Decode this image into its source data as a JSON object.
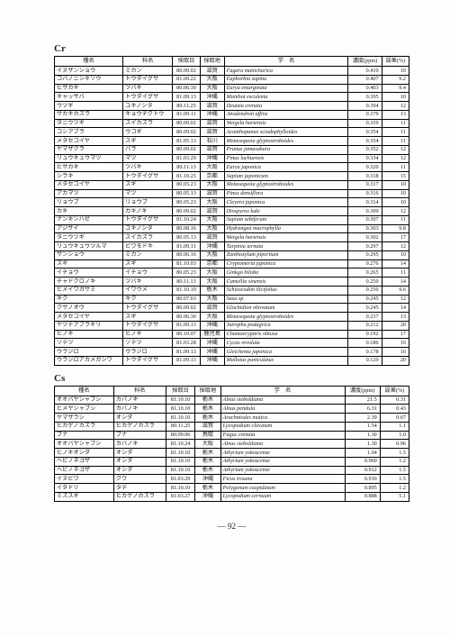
{
  "page_number": "92",
  "font_main": "MS Mincho",
  "colors": {
    "border": "#000000",
    "text": "#222222",
    "bg": "#fdfdfb"
  },
  "font_sizes": {
    "title": 11,
    "table": 6.2,
    "page_no": 9
  },
  "columns": [
    "種名",
    "科名",
    "採取日",
    "採取地",
    "学　名",
    "濃度(ppm)",
    "誤差(%)"
  ],
  "col_widths_pct": [
    14,
    13,
    10,
    7,
    35,
    9,
    7
  ],
  "tables": [
    {
      "title": "Cr",
      "rows": [
        [
          "イヌザンショウ",
          "ミカン",
          "80.09.02",
          "滋賀",
          "Fagara manichurica",
          "0.410",
          "10"
        ],
        [
          "コバノニシキソウ",
          "トウダイグサ",
          "81.09.22",
          "大阪",
          "Euphorbia supina",
          "0.407",
          "9.2"
        ],
        [
          "ヒサカキ",
          "ツバキ",
          "80.06.30",
          "大阪",
          "Eurya emarginata",
          "0.403",
          "9.4"
        ],
        [
          "キャッサバ",
          "トウダイグサ",
          "81.09.13",
          "沖縄",
          "Manihot esculenta",
          "0.395",
          "10"
        ],
        [
          "ウツギ",
          "ユキノシタ",
          "80.11.25",
          "滋賀",
          "Deutzia crenata",
          "0.394",
          "12"
        ],
        [
          "サカキカズラ",
          "キョウチクトウ",
          "81.09.11",
          "沖縄",
          "Anodendron affine",
          "0.379",
          "13"
        ],
        [
          "タニウツギ",
          "スイカズラ",
          "80.09.02",
          "滋賀",
          "Weigela hortensis",
          "0.359",
          "11"
        ],
        [
          "コシアブラ",
          "ウコギ",
          "80.09.02",
          "滋賀",
          "Acanthopanax sciadophylloides",
          "0.354",
          "11"
        ],
        [
          "メタセコイヤ",
          "スギ",
          "81.05.13",
          "石川",
          "Metasequoia glyptostroboides",
          "0.354",
          "11"
        ],
        [
          "ヤマザクラ",
          "バラ",
          "80.09.02",
          "滋賀",
          "Prunus jamasakura",
          "0.352",
          "12"
        ],
        [
          "リュウキュウマツ",
          "マツ",
          "81.03.29",
          "沖縄",
          "Pinus luchuensis",
          "0.334",
          "12"
        ],
        [
          "ヒサカキ",
          "ツバキ",
          "80.11.13",
          "大阪",
          "Eurya japonica",
          "0.320",
          "11"
        ],
        [
          "シラキ",
          "トウダイグサ",
          "81.10.25",
          "京都",
          "Sapium japonicum",
          "0.318",
          "15"
        ],
        [
          "メタセコイヤ",
          "スギ",
          "80.05.23",
          "大阪",
          "Metasequoia glyptostroboides",
          "0.317",
          "10"
        ],
        [
          "アカマツ",
          "マツ",
          "80.05.13",
          "滋賀",
          "Pinus densiflora",
          "0.316",
          "10"
        ],
        [
          "リョウブ",
          "リョウブ",
          "80.05.23",
          "大阪",
          "Cleyera japonica",
          "0.314",
          "10"
        ],
        [
          "カキ",
          "カキノキ",
          "80.09.02",
          "滋賀",
          "Diospyros kaki",
          "0.309",
          "12"
        ],
        [
          "ナンキンハゼ",
          "トウダイグサ",
          "81.10.24",
          "大阪",
          "Sapium sebiferum",
          "0.307",
          "11"
        ],
        [
          "アジサイ",
          "ユキノシタ",
          "80.08.16",
          "大阪",
          "Hydrangea macrophylla",
          "0.303",
          "9.8"
        ],
        [
          "タニウツギ",
          "スイカズラ",
          "80.05.13",
          "滋賀",
          "Weigela hortensis",
          "0.302",
          "17"
        ],
        [
          "リュウキュウツルマ",
          "ビワモドキ",
          "81.09.11",
          "沖縄",
          "Turpinia ternata",
          "0.297",
          "12"
        ],
        [
          "サンショウ",
          "ミカン",
          "80.06.16",
          "大阪",
          "Zanthoxylum piperitum",
          "0.295",
          "10"
        ],
        [
          "スギ",
          "スギ",
          "81.10.03",
          "京都",
          "Cryptomeria japonica",
          "0.276",
          "14"
        ],
        [
          "イチョウ",
          "イチョウ",
          "80.05.23",
          "大阪",
          "Ginkgo biloba",
          "0.265",
          "11"
        ],
        [
          "チャドクロノキ",
          "ツバキ",
          "80.11.13",
          "大阪",
          "Camellia sinensis",
          "0.250",
          "14"
        ],
        [
          "ヒメイワガサミ",
          "イワウメ",
          "81.10.10",
          "栃木",
          "Schizocodon ilicifolius",
          "0.250",
          "9.6"
        ],
        [
          "キク",
          "キク",
          "80.07.03",
          "大阪",
          "Sasa sp.",
          "0.245",
          "12"
        ],
        [
          "クサノオウ",
          "トウダイグサ",
          "80.09.02",
          "滋賀",
          "Glochidion obovatum",
          "0.245",
          "14"
        ],
        [
          "メタセコイヤ",
          "スギ",
          "80.06.30",
          "大阪",
          "Metasequoia glyptostroboides",
          "0.237",
          "13"
        ],
        [
          "ヤツデアブラギリ",
          "トウダイグサ",
          "81.09.13",
          "沖縄",
          "Jatropha podagrica",
          "0.212",
          "20"
        ],
        [
          "ヒノキ",
          "ヒノキ",
          "80.10.07",
          "鹿児島",
          "Chamaecyparis obtusa",
          "0.192",
          "17"
        ],
        [
          "ソテツ",
          "ソテツ",
          "81.03.28",
          "沖縄",
          "Cycas revoluta",
          "0.186",
          "16"
        ],
        [
          "ウラジロ",
          "ウラジロ",
          "81.09.13",
          "沖縄",
          "Gleichenia japonica",
          "0.178",
          "16"
        ],
        [
          "ウラジロアカメガシワ",
          "トウダイグサ",
          "81.09.13",
          "沖縄",
          "Mallotus paniculatus",
          "0.129",
          "20"
        ]
      ]
    },
    {
      "title": "Cs",
      "rows": [
        [
          "オオバヤシャブシ",
          "カバノキ",
          "81.10.10",
          "栃木",
          "Alnus sieboldiana",
          "21.5",
          "0.31"
        ],
        [
          "ヒメヤシャブシ",
          "カバノキ",
          "81.10.10",
          "栃木",
          "Alnus pendula",
          "6.31",
          "0.43"
        ],
        [
          "ヤマザラシ",
          "オシダ",
          "81.10.10",
          "栃木",
          "Arachniodes mutica",
          "2.39",
          "0.67"
        ],
        [
          "ヒカゲノカズラ",
          "ヒカゲノカズラ",
          "80.11.25",
          "滋賀",
          "Lycopodium clavatum",
          "1.54",
          "1.1"
        ],
        [
          "ブナ",
          "ブナ",
          "80.09.06",
          "鳥取",
          "Fagus crenata",
          "1.30",
          "1.0"
        ],
        [
          "オオバヤシャブシ",
          "カバノキ",
          "81.10.24",
          "大阪",
          "Alnus sieboldiana",
          "1.30",
          "0.96"
        ],
        [
          "ヒノキオシダ",
          "オシダ",
          "81.10.10",
          "栃木",
          "Athyrium yokoscense",
          "1.04",
          "1.5"
        ],
        [
          "ヘビノネゴザ",
          "オシダ",
          "81.10.10",
          "栃木",
          "Athyrium yokoscense",
          "0.960",
          "1.2"
        ],
        [
          "ヘビノネゴザ",
          "オシダ",
          "81.10.10",
          "栃木",
          "Athyrium yokoscense",
          "0.912",
          "1.5"
        ],
        [
          "イヌビワ",
          "クワ",
          "81.03.29",
          "沖縄",
          "Ficus irisana",
          "0.910",
          "1.5"
        ],
        [
          "イタドリ",
          "タデ",
          "81.10.10",
          "栃木",
          "Polygonum cuspidatum",
          "0.895",
          "1.2"
        ],
        [
          "ミズスギ",
          "ヒカゲノカズラ",
          "81.03.27",
          "沖縄",
          "Lycopodium cernuum",
          "0.888",
          "5.1"
        ]
      ]
    }
  ]
}
